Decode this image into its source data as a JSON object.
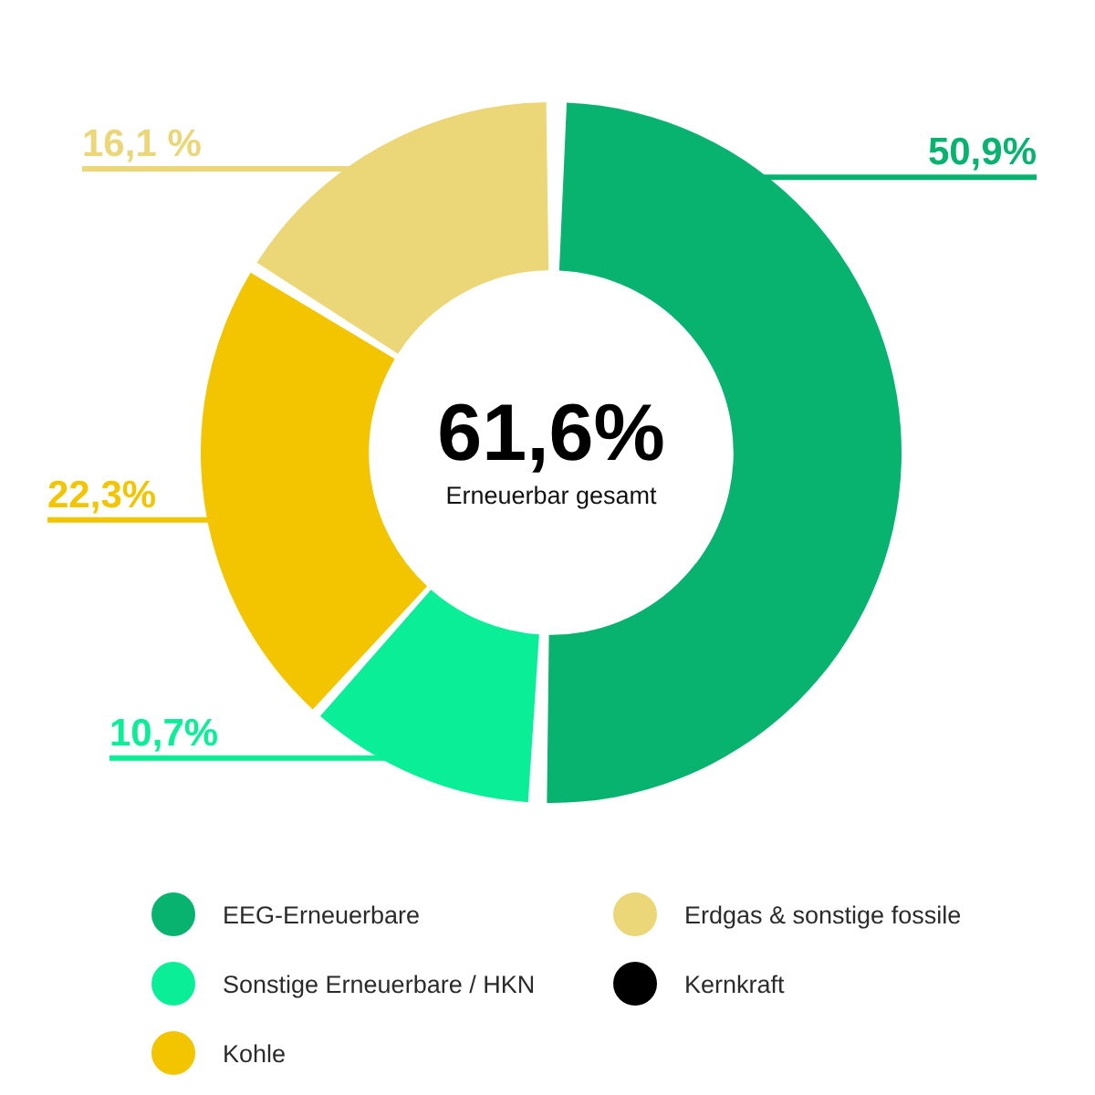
{
  "chart_data": {
    "type": "donut",
    "categories": [
      "EEG-Erneuerbare",
      "Sonstige Erneuerbare / HKN",
      "Kohle",
      "Erdgas & sonstige fossile",
      "Kernkraft"
    ],
    "values": [
      50.9,
      10.7,
      22.3,
      16.1,
      0
    ],
    "colors": [
      "#07b36f",
      "#0aef97",
      "#f2c500",
      "#ebd678",
      "#000000"
    ],
    "value_labels": [
      "50,9%",
      "10,7%",
      "22,3%",
      "16,1 %",
      null
    ],
    "annotations": [
      "61,6%",
      "Erneuerbar gesamt"
    ],
    "legend": "bottom"
  }
}
